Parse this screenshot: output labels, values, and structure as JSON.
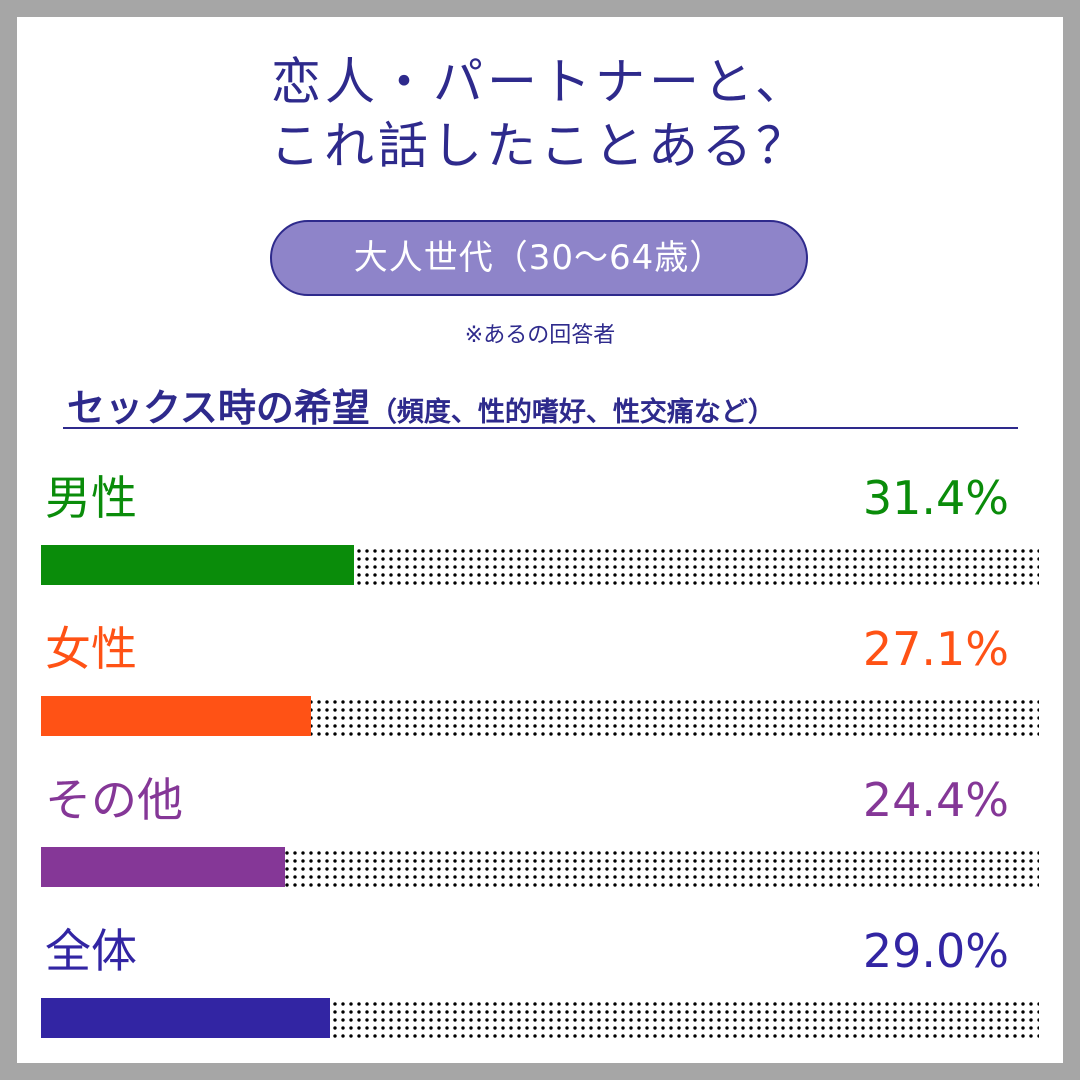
{
  "title_line1": "恋人・パートナーと、",
  "title_line2": "これ話したことある？",
  "badge": "大人世代（30〜64歳）",
  "note": "※あるの回答者",
  "section_title": "セックス時の希望",
  "section_subtitle": "（頻度、性的嗜好、性交痛など）",
  "colors": {
    "accent": "#2e2a8c",
    "badge_bg": "#8e84c9",
    "male": "#0a8c0a",
    "female": "#ff5215",
    "other": "#853797",
    "total": "#3225a3"
  },
  "chart_data": {
    "type": "bar",
    "orientation": "horizontal",
    "title": "セックス時の希望",
    "categories": [
      "男性",
      "女性",
      "その他",
      "全体"
    ],
    "values": [
      31.4,
      27.1,
      24.4,
      29.0
    ],
    "value_labels": [
      "31.4%",
      "27.1%",
      "24.4%",
      "29.0%"
    ],
    "xlim": [
      0,
      100
    ],
    "unit": "%",
    "bar_colors": [
      "#0a8c0a",
      "#ff5215",
      "#853797",
      "#3225a3"
    ]
  }
}
